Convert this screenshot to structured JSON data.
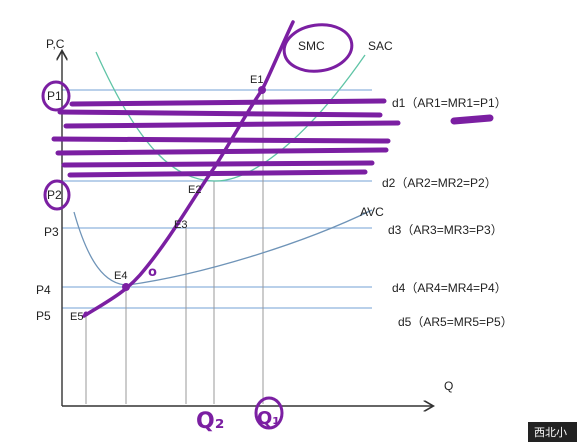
{
  "axes": {
    "y_label": "P,C",
    "x_label": "Q"
  },
  "curves": {
    "smc": "SMC",
    "sac": "SAC",
    "avc": "AVC"
  },
  "price_levels": [
    {
      "p": "P1",
      "d": "d1（AR1=MR1=P1）",
      "e": "E1"
    },
    {
      "p": "P2",
      "d": "d2（AR2=MR2=P2）",
      "e": "E2"
    },
    {
      "p": "P3",
      "d": "d3（AR3=MR3=P3）",
      "e": "E3"
    },
    {
      "p": "P4",
      "d": "d4（AR4=MR4=P4）",
      "e": "E4"
    },
    {
      "p": "P5",
      "d": "d5（AR5=MR5=P5）",
      "e": "E5"
    }
  ],
  "annotations": {
    "q2": "Q₂",
    "q1": "Q₁",
    "dot": "o"
  },
  "watermark": "西北小",
  "colors": {
    "axis": "#333333",
    "price_line": "#8fb3dd",
    "sac": "#5fc4a6",
    "avc": "#6f94b8",
    "ink": "#7b1fa2",
    "text": "#222222"
  }
}
